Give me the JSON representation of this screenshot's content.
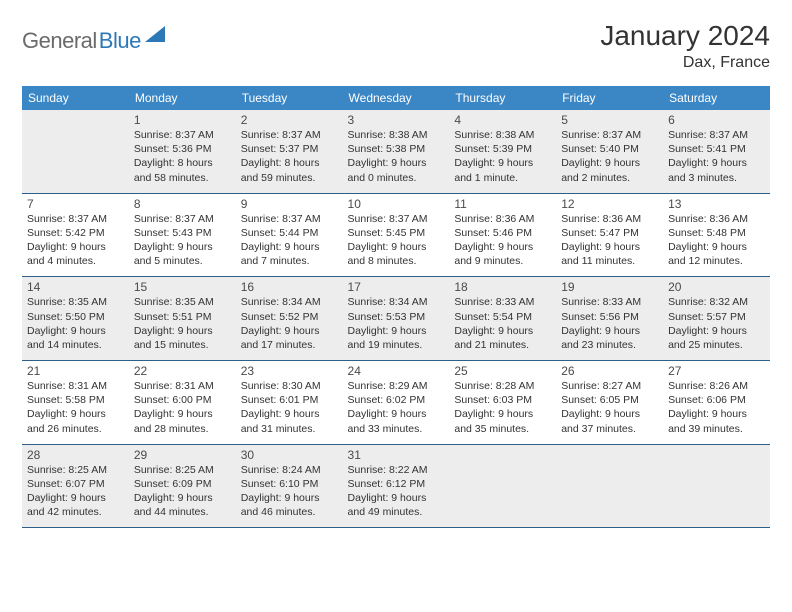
{
  "logo": {
    "part1": "General",
    "part2": "Blue"
  },
  "title": "January 2024",
  "location": "Dax, France",
  "colors": {
    "header_bg": "#3b86c4",
    "header_text": "#ffffff",
    "row_border": "#2d5f8a",
    "shaded_bg": "#ededed",
    "logo_gray": "#6b6b6b",
    "logo_blue": "#2d79b8"
  },
  "weekdays": [
    "Sunday",
    "Monday",
    "Tuesday",
    "Wednesday",
    "Thursday",
    "Friday",
    "Saturday"
  ],
  "weeks": [
    [
      null,
      {
        "n": "1",
        "sr": "Sunrise: 8:37 AM",
        "ss": "Sunset: 5:36 PM",
        "dl": "Daylight: 8 hours and 58 minutes."
      },
      {
        "n": "2",
        "sr": "Sunrise: 8:37 AM",
        "ss": "Sunset: 5:37 PM",
        "dl": "Daylight: 8 hours and 59 minutes."
      },
      {
        "n": "3",
        "sr": "Sunrise: 8:38 AM",
        "ss": "Sunset: 5:38 PM",
        "dl": "Daylight: 9 hours and 0 minutes."
      },
      {
        "n": "4",
        "sr": "Sunrise: 8:38 AM",
        "ss": "Sunset: 5:39 PM",
        "dl": "Daylight: 9 hours and 1 minute."
      },
      {
        "n": "5",
        "sr": "Sunrise: 8:37 AM",
        "ss": "Sunset: 5:40 PM",
        "dl": "Daylight: 9 hours and 2 minutes."
      },
      {
        "n": "6",
        "sr": "Sunrise: 8:37 AM",
        "ss": "Sunset: 5:41 PM",
        "dl": "Daylight: 9 hours and 3 minutes."
      }
    ],
    [
      {
        "n": "7",
        "sr": "Sunrise: 8:37 AM",
        "ss": "Sunset: 5:42 PM",
        "dl": "Daylight: 9 hours and 4 minutes."
      },
      {
        "n": "8",
        "sr": "Sunrise: 8:37 AM",
        "ss": "Sunset: 5:43 PM",
        "dl": "Daylight: 9 hours and 5 minutes."
      },
      {
        "n": "9",
        "sr": "Sunrise: 8:37 AM",
        "ss": "Sunset: 5:44 PM",
        "dl": "Daylight: 9 hours and 7 minutes."
      },
      {
        "n": "10",
        "sr": "Sunrise: 8:37 AM",
        "ss": "Sunset: 5:45 PM",
        "dl": "Daylight: 9 hours and 8 minutes."
      },
      {
        "n": "11",
        "sr": "Sunrise: 8:36 AM",
        "ss": "Sunset: 5:46 PM",
        "dl": "Daylight: 9 hours and 9 minutes."
      },
      {
        "n": "12",
        "sr": "Sunrise: 8:36 AM",
        "ss": "Sunset: 5:47 PM",
        "dl": "Daylight: 9 hours and 11 minutes."
      },
      {
        "n": "13",
        "sr": "Sunrise: 8:36 AM",
        "ss": "Sunset: 5:48 PM",
        "dl": "Daylight: 9 hours and 12 minutes."
      }
    ],
    [
      {
        "n": "14",
        "sr": "Sunrise: 8:35 AM",
        "ss": "Sunset: 5:50 PM",
        "dl": "Daylight: 9 hours and 14 minutes."
      },
      {
        "n": "15",
        "sr": "Sunrise: 8:35 AM",
        "ss": "Sunset: 5:51 PM",
        "dl": "Daylight: 9 hours and 15 minutes."
      },
      {
        "n": "16",
        "sr": "Sunrise: 8:34 AM",
        "ss": "Sunset: 5:52 PM",
        "dl": "Daylight: 9 hours and 17 minutes."
      },
      {
        "n": "17",
        "sr": "Sunrise: 8:34 AM",
        "ss": "Sunset: 5:53 PM",
        "dl": "Daylight: 9 hours and 19 minutes."
      },
      {
        "n": "18",
        "sr": "Sunrise: 8:33 AM",
        "ss": "Sunset: 5:54 PM",
        "dl": "Daylight: 9 hours and 21 minutes."
      },
      {
        "n": "19",
        "sr": "Sunrise: 8:33 AM",
        "ss": "Sunset: 5:56 PM",
        "dl": "Daylight: 9 hours and 23 minutes."
      },
      {
        "n": "20",
        "sr": "Sunrise: 8:32 AM",
        "ss": "Sunset: 5:57 PM",
        "dl": "Daylight: 9 hours and 25 minutes."
      }
    ],
    [
      {
        "n": "21",
        "sr": "Sunrise: 8:31 AM",
        "ss": "Sunset: 5:58 PM",
        "dl": "Daylight: 9 hours and 26 minutes."
      },
      {
        "n": "22",
        "sr": "Sunrise: 8:31 AM",
        "ss": "Sunset: 6:00 PM",
        "dl": "Daylight: 9 hours and 28 minutes."
      },
      {
        "n": "23",
        "sr": "Sunrise: 8:30 AM",
        "ss": "Sunset: 6:01 PM",
        "dl": "Daylight: 9 hours and 31 minutes."
      },
      {
        "n": "24",
        "sr": "Sunrise: 8:29 AM",
        "ss": "Sunset: 6:02 PM",
        "dl": "Daylight: 9 hours and 33 minutes."
      },
      {
        "n": "25",
        "sr": "Sunrise: 8:28 AM",
        "ss": "Sunset: 6:03 PM",
        "dl": "Daylight: 9 hours and 35 minutes."
      },
      {
        "n": "26",
        "sr": "Sunrise: 8:27 AM",
        "ss": "Sunset: 6:05 PM",
        "dl": "Daylight: 9 hours and 37 minutes."
      },
      {
        "n": "27",
        "sr": "Sunrise: 8:26 AM",
        "ss": "Sunset: 6:06 PM",
        "dl": "Daylight: 9 hours and 39 minutes."
      }
    ],
    [
      {
        "n": "28",
        "sr": "Sunrise: 8:25 AM",
        "ss": "Sunset: 6:07 PM",
        "dl": "Daylight: 9 hours and 42 minutes."
      },
      {
        "n": "29",
        "sr": "Sunrise: 8:25 AM",
        "ss": "Sunset: 6:09 PM",
        "dl": "Daylight: 9 hours and 44 minutes."
      },
      {
        "n": "30",
        "sr": "Sunrise: 8:24 AM",
        "ss": "Sunset: 6:10 PM",
        "dl": "Daylight: 9 hours and 46 minutes."
      },
      {
        "n": "31",
        "sr": "Sunrise: 8:22 AM",
        "ss": "Sunset: 6:12 PM",
        "dl": "Daylight: 9 hours and 49 minutes."
      },
      null,
      null,
      null
    ]
  ]
}
